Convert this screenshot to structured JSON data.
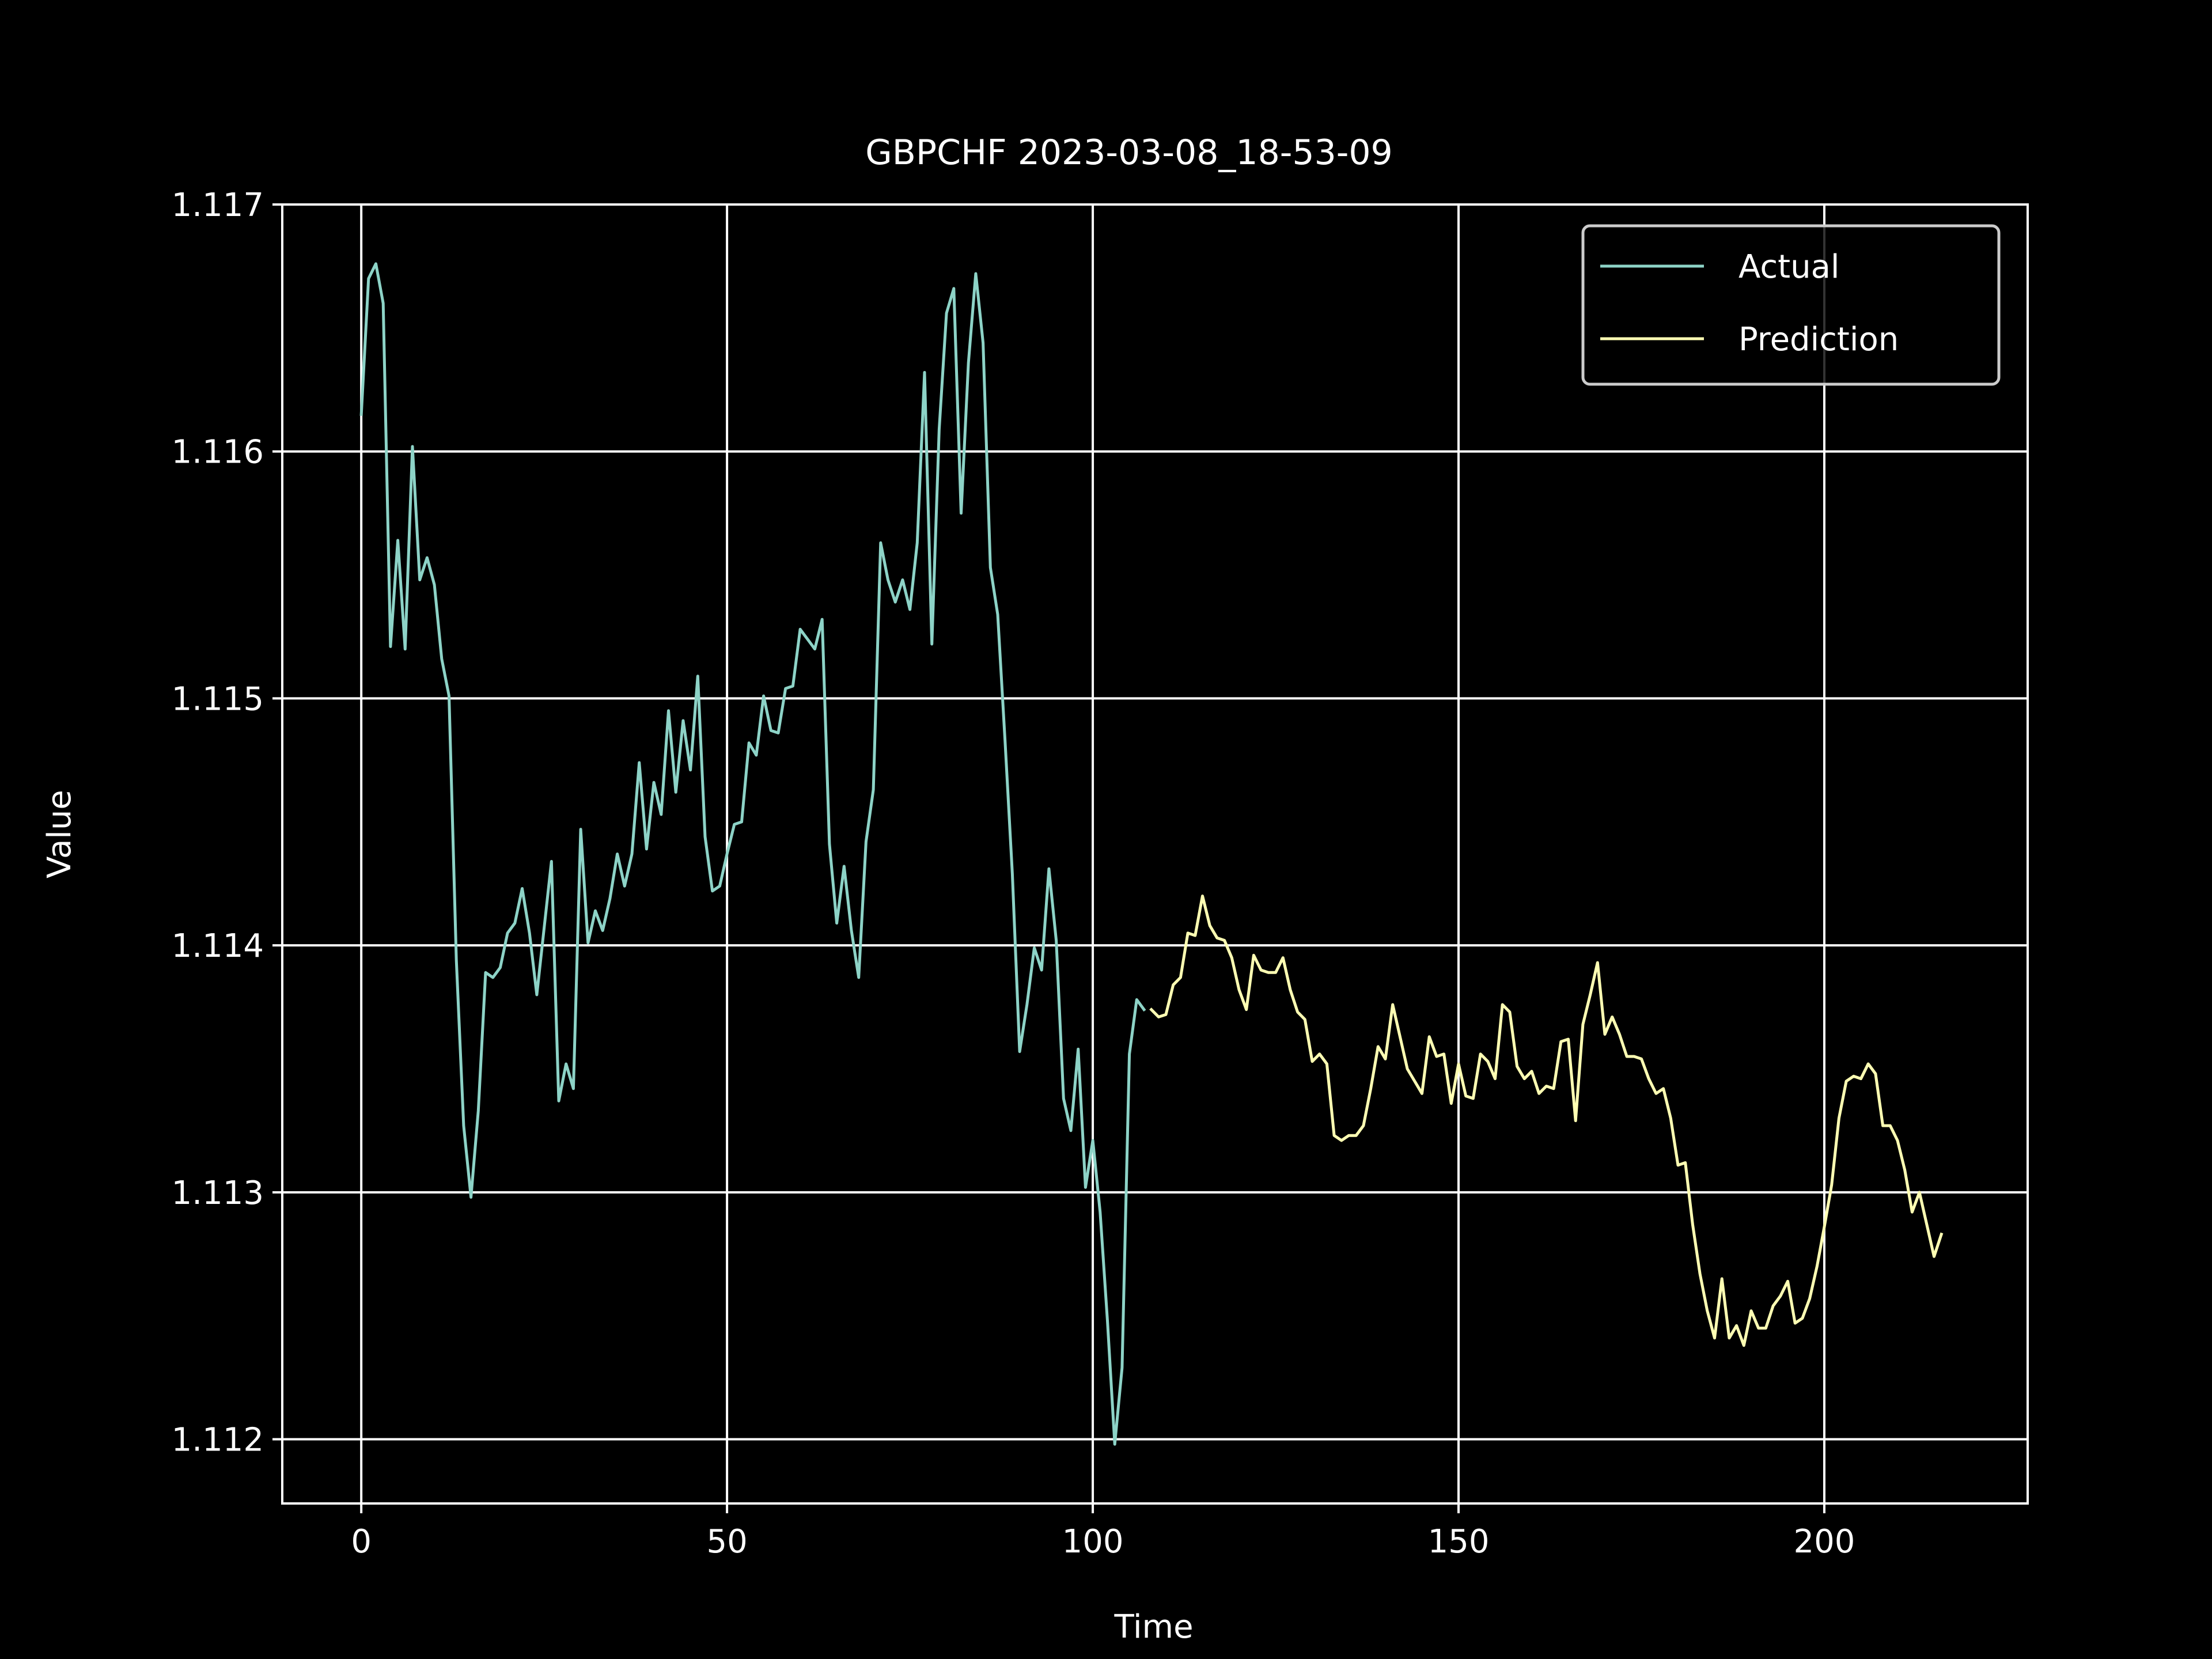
{
  "chart_data": {
    "type": "line",
    "title": "GBPCHF 2023-03-08_18-53-09",
    "xlabel": "Time",
    "ylabel": "Value",
    "xlim": [
      -10.8,
      227.8
    ],
    "ylim": [
      1.11174,
      1.117
    ],
    "xticks": [
      0,
      50,
      100,
      150,
      200
    ],
    "xtick_labels": [
      "0",
      "50",
      "100",
      "150",
      "200"
    ],
    "yticks": [
      1.112,
      1.113,
      1.114,
      1.115,
      1.116,
      1.117
    ],
    "ytick_labels": [
      "1.112",
      "1.113",
      "1.114",
      "1.115",
      "1.116",
      "1.117"
    ],
    "grid": true,
    "legend_position": "top-right",
    "series": [
      {
        "name": "Actual",
        "color": "#8dd3c7",
        "x_start": 0,
        "values": [
          1.11615,
          1.1167,
          1.11676,
          1.1166,
          1.11521,
          1.11564,
          1.1152,
          1.11602,
          1.11548,
          1.11557,
          1.11546,
          1.11516,
          1.11501,
          1.11394,
          1.11327,
          1.11298,
          1.11333,
          1.11389,
          1.11387,
          1.11391,
          1.11405,
          1.11409,
          1.11423,
          1.11405,
          1.1138,
          1.11407,
          1.11434,
          1.11337,
          1.11352,
          1.11342,
          1.11447,
          1.11401,
          1.11414,
          1.11406,
          1.11419,
          1.11437,
          1.11424,
          1.11437,
          1.11474,
          1.11439,
          1.11466,
          1.11453,
          1.11495,
          1.11462,
          1.11491,
          1.11471,
          1.11509,
          1.11444,
          1.11422,
          1.11424,
          1.11437,
          1.11449,
          1.1145,
          1.11482,
          1.11477,
          1.11501,
          1.11487,
          1.11486,
          1.11504,
          1.11505,
          1.11528,
          1.11524,
          1.1152,
          1.11532,
          1.11441,
          1.11409,
          1.11432,
          1.11406,
          1.11387,
          1.11442,
          1.11463,
          1.11563,
          1.11548,
          1.11539,
          1.11548,
          1.11536,
          1.11563,
          1.11632,
          1.11522,
          1.11609,
          1.11656,
          1.11666,
          1.11575,
          1.11636,
          1.11672,
          1.11644,
          1.11553,
          1.11534,
          1.11483,
          1.11429,
          1.11357,
          1.11376,
          1.11399,
          1.1139,
          1.11431,
          1.11402,
          1.11338,
          1.11325,
          1.11358,
          1.11302,
          1.11321,
          1.11292,
          1.11248,
          1.11198,
          1.11229,
          1.11356,
          1.11378,
          1.11374
        ]
      },
      {
        "name": "Prediction",
        "color": "#ffffb3",
        "x_start": 108,
        "values": [
          1.11374,
          1.11371,
          1.11372,
          1.11384,
          1.11387,
          1.11405,
          1.11404,
          1.1142,
          1.11408,
          1.11403,
          1.11402,
          1.11395,
          1.11382,
          1.11374,
          1.11396,
          1.1139,
          1.11389,
          1.11389,
          1.11395,
          1.11382,
          1.11373,
          1.1137,
          1.11353,
          1.11356,
          1.11352,
          1.11323,
          1.11321,
          1.11323,
          1.11323,
          1.11327,
          1.11342,
          1.11359,
          1.11354,
          1.11376,
          1.11363,
          1.1135,
          1.11345,
          1.1134,
          1.11363,
          1.11355,
          1.11356,
          1.11336,
          1.11352,
          1.11339,
          1.11338,
          1.11356,
          1.11353,
          1.11346,
          1.11376,
          1.11373,
          1.11351,
          1.11346,
          1.11349,
          1.1134,
          1.11343,
          1.11342,
          1.11361,
          1.11362,
          1.11329,
          1.11368,
          1.1138,
          1.11393,
          1.11364,
          1.11371,
          1.11364,
          1.11355,
          1.11355,
          1.11354,
          1.11346,
          1.1134,
          1.11342,
          1.1133,
          1.11311,
          1.11312,
          1.11287,
          1.11267,
          1.11252,
          1.11241,
          1.11265,
          1.11241,
          1.11246,
          1.11238,
          1.11252,
          1.11245,
          1.11245,
          1.11254,
          1.11258,
          1.11264,
          1.11247,
          1.11249,
          1.11257,
          1.1127,
          1.11286,
          1.11303,
          1.1133,
          1.11345,
          1.11347,
          1.11346,
          1.11352,
          1.11348,
          1.11327,
          1.11327,
          1.11321,
          1.11309,
          1.11292,
          1.113,
          1.11287,
          1.11274,
          1.11283
        ]
      }
    ]
  }
}
